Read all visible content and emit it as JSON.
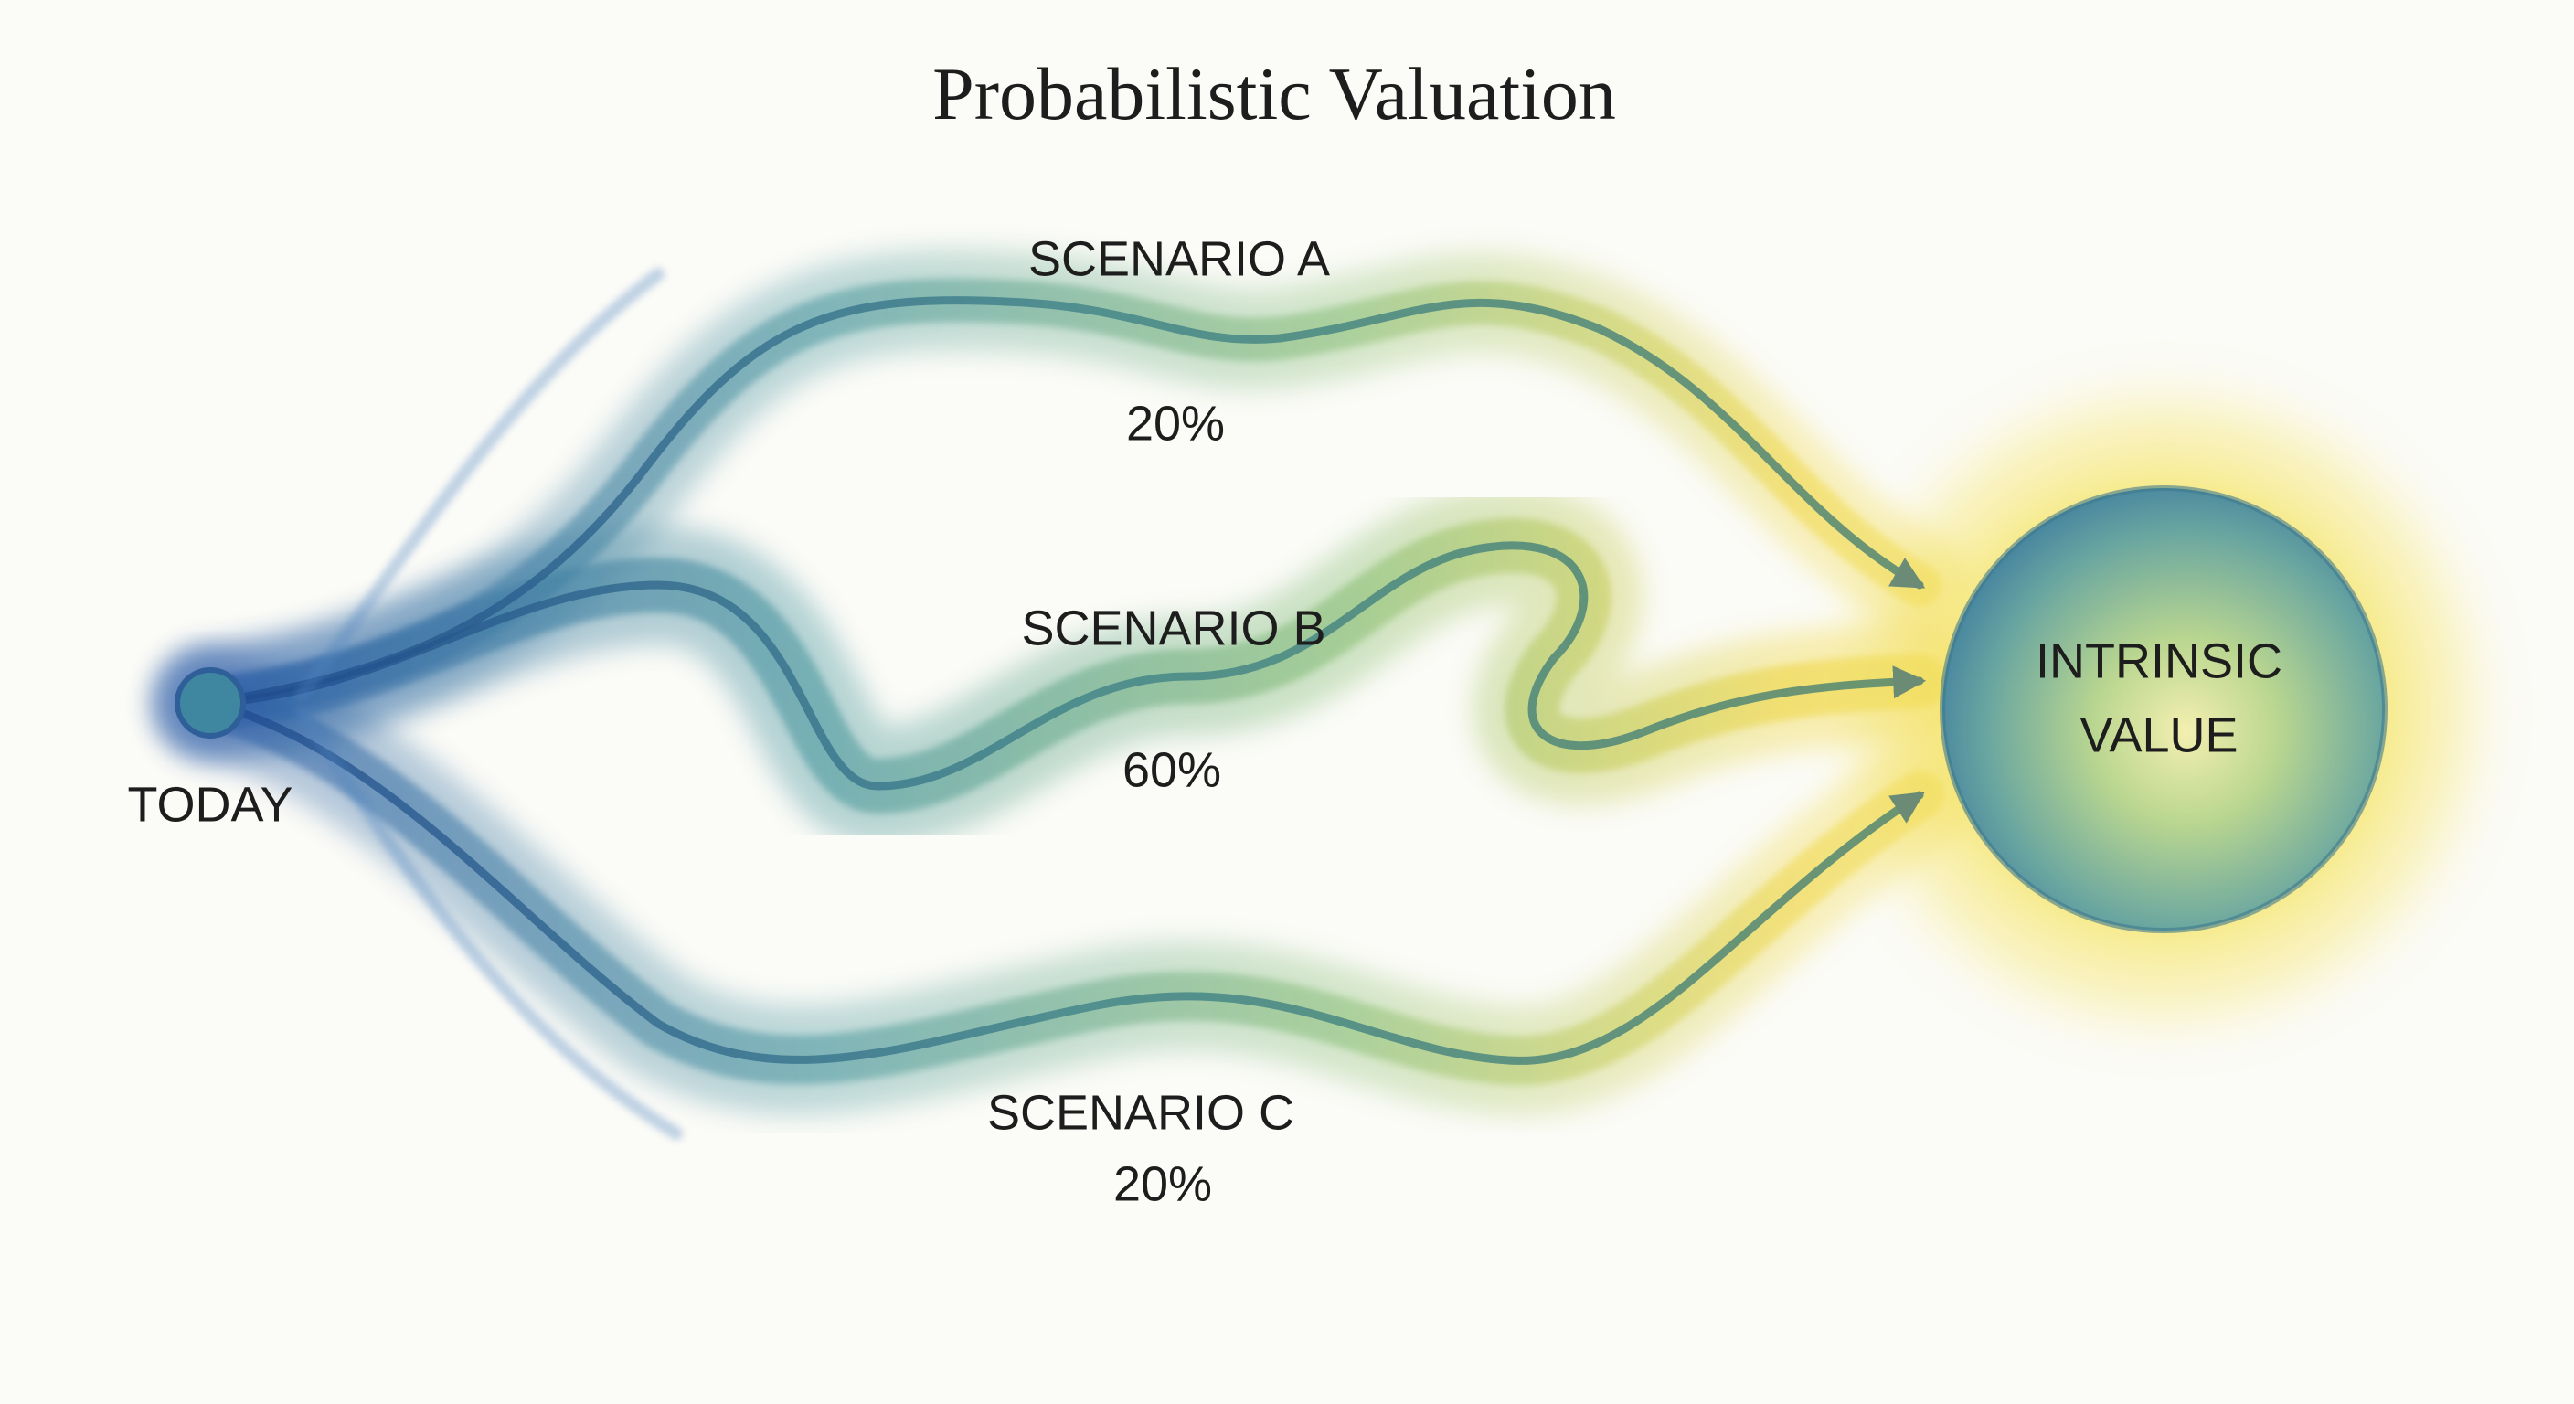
{
  "title": "Probabilistic Valuation",
  "start": {
    "label": "TODAY"
  },
  "scenarios": [
    {
      "label": "SCENARIO A",
      "probability": "20%"
    },
    {
      "label": "SCENARIO B",
      "probability": "60%"
    },
    {
      "label": "SCENARIO C",
      "probability": "20%"
    }
  ],
  "target": {
    "label_lines": [
      "INTRINSIC",
      "VALUE"
    ]
  }
}
